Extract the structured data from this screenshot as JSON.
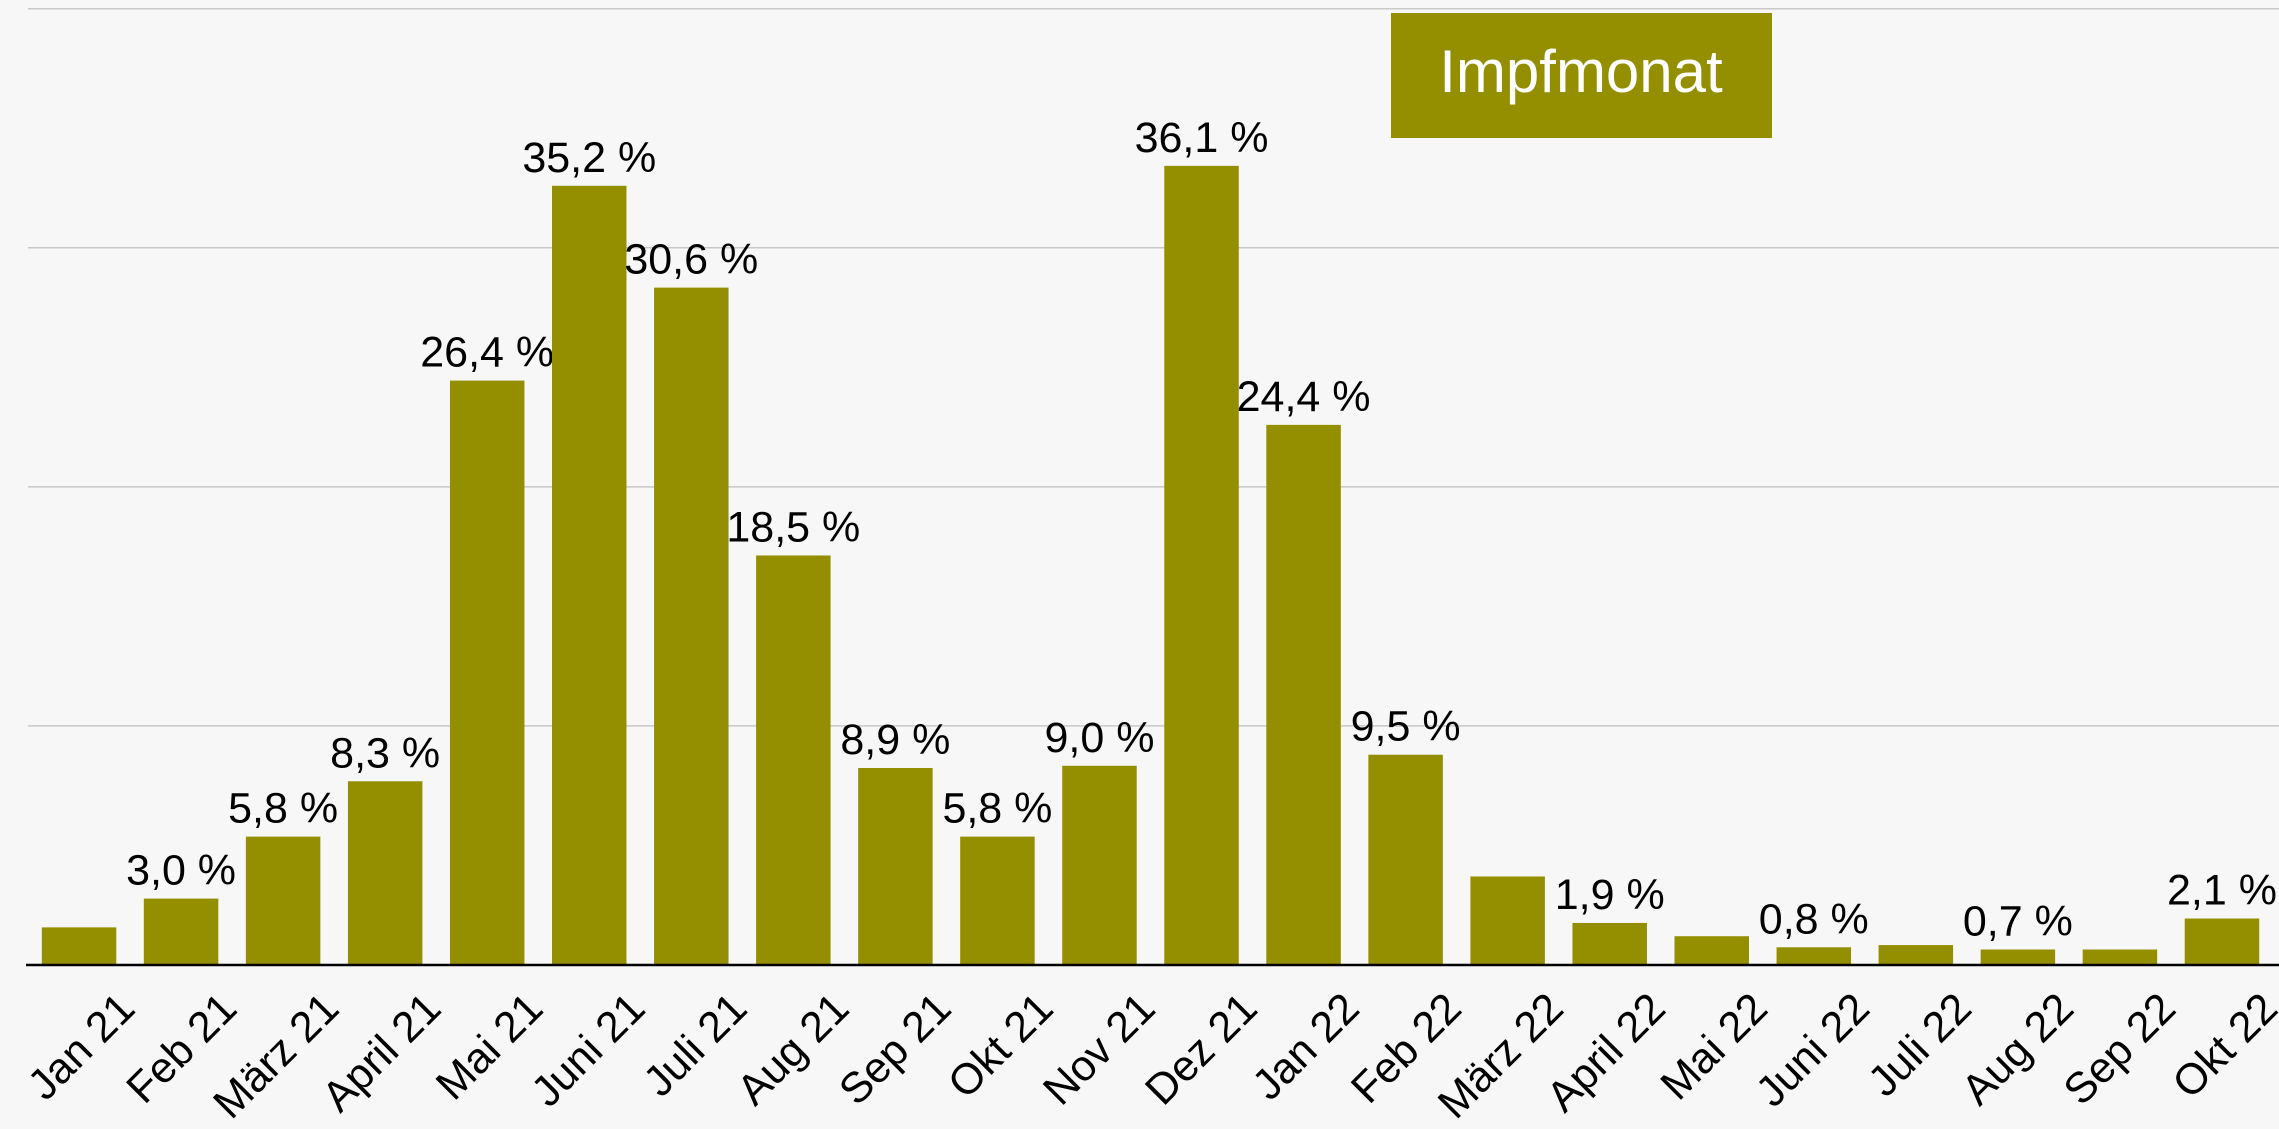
{
  "chart_data": {
    "type": "bar",
    "categories": [
      "Jan 21",
      "Feb 21",
      "März 21",
      "April 21",
      "Mai 21",
      "Juni 21",
      "Juli 21",
      "Aug 21",
      "Sep 21",
      "Okt 21",
      "Nov 21",
      "Dez 21",
      "Jan 22",
      "Feb 22",
      "März 22",
      "April 22",
      "Mai 22",
      "Juni 22",
      "Juli 22",
      "Aug 22",
      "Sep 22",
      "Okt 22"
    ],
    "series": [
      {
        "name": "Impfmonat",
        "color": "#948f00",
        "values": [
          1.7,
          3.0,
          5.8,
          8.3,
          26.4,
          35.2,
          30.6,
          18.5,
          8.9,
          5.8,
          9.0,
          36.1,
          24.4,
          9.5,
          4.0,
          1.9,
          1.3,
          0.8,
          0.9,
          0.7,
          0.7,
          2.1
        ],
        "value_labels": [
          null,
          "3,0 %",
          "5,8 %",
          "8,3 %",
          "26,4 %",
          "35,2 %",
          "30,6 %",
          "18,5 %",
          "8,9 %",
          "5,8 %",
          "9,0 %",
          "36,1 %",
          "24,4 %",
          "9,5 %",
          null,
          "1,9 %",
          null,
          "0,8 %",
          null,
          "0,7 %",
          null,
          "2,1 %"
        ]
      }
    ],
    "ylim": [
      0,
      43.2
    ],
    "yticks": [
      10.8,
      21.6,
      32.4,
      43.2
    ],
    "grid": true,
    "legend": "top-right"
  }
}
